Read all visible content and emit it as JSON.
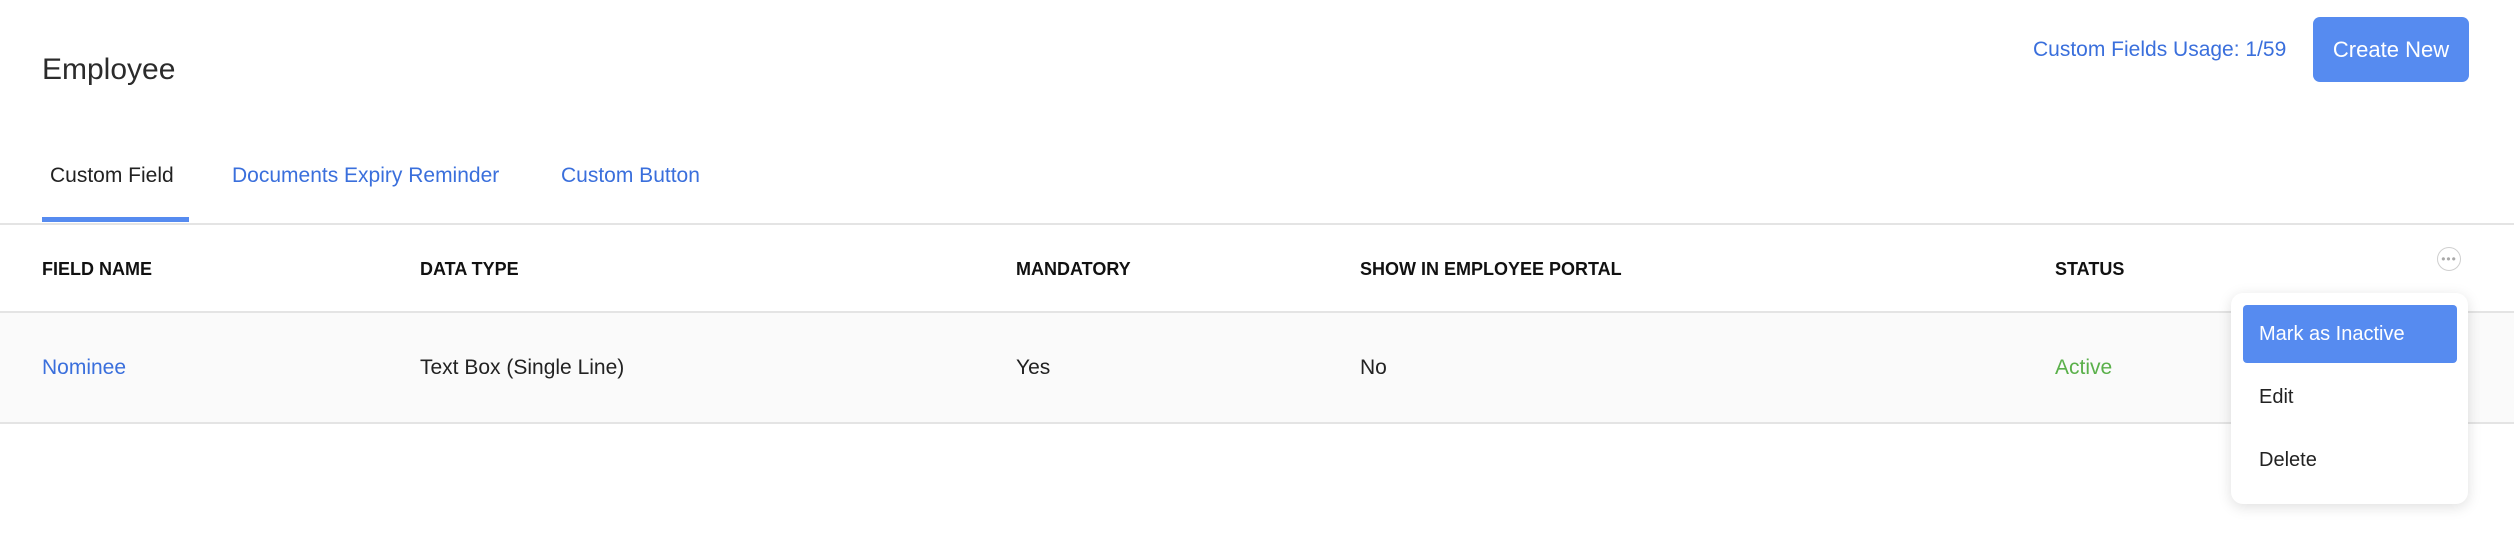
{
  "header": {
    "title": "Employee",
    "usage": "Custom Fields Usage: 1/59",
    "create_label": "Create New"
  },
  "tabs": [
    {
      "label": "Custom Field",
      "active": true
    },
    {
      "label": "Documents Expiry Reminder"
    },
    {
      "label": "Custom Button"
    }
  ],
  "table": {
    "columns": [
      "FIELD NAME",
      "DATA TYPE",
      "MANDATORY",
      "SHOW IN EMPLOYEE PORTAL",
      "STATUS"
    ],
    "rows": [
      {
        "field_name": "Nominee",
        "data_type": "Text Box (Single Line)",
        "mandatory": "Yes",
        "show_in_portal": "No",
        "status": "Active"
      }
    ]
  },
  "menu": {
    "items": [
      "Mark as Inactive",
      "Edit",
      "Delete"
    ]
  },
  "colors": {
    "accent": "#568bf0",
    "link": "#3a6fdc",
    "active_status": "#5ab04a"
  }
}
